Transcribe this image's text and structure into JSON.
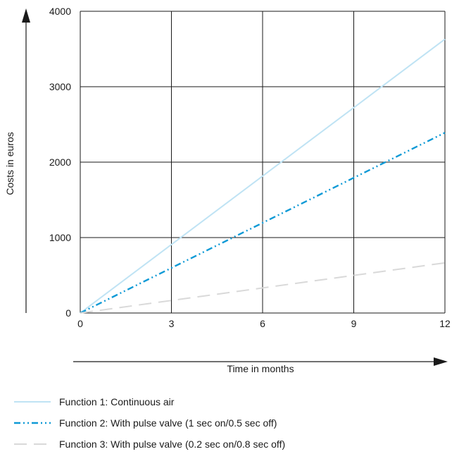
{
  "chart_data": {
    "type": "line",
    "xlabel": "Time in months",
    "ylabel": "Costs in euros",
    "xlim": [
      0,
      12
    ],
    "ylim": [
      0,
      4000
    ],
    "x_ticks": [
      "0",
      "3",
      "6",
      "9",
      "12"
    ],
    "y_ticks": [
      "0",
      "1000",
      "2000",
      "3000",
      "4000"
    ],
    "grid": true,
    "legend_position": "bottom",
    "series": [
      {
        "name": "Function 1: Continuous air",
        "x": [
          0,
          12
        ],
        "y": [
          0,
          3630
        ],
        "color": "#bfe3f4",
        "style": "solid"
      },
      {
        "name": "Function 2: With pulse valve (1 sec on/0.5 sec off)",
        "x": [
          0,
          12
        ],
        "y": [
          0,
          2390
        ],
        "color": "#0f9ad6",
        "style": "dash-dot-dot"
      },
      {
        "name": "Function 3: With pulse valve (0.2 sec on/0.8 sec off)",
        "x": [
          0,
          12
        ],
        "y": [
          0,
          665
        ],
        "color": "#d9d9d9",
        "style": "dashed"
      }
    ]
  }
}
